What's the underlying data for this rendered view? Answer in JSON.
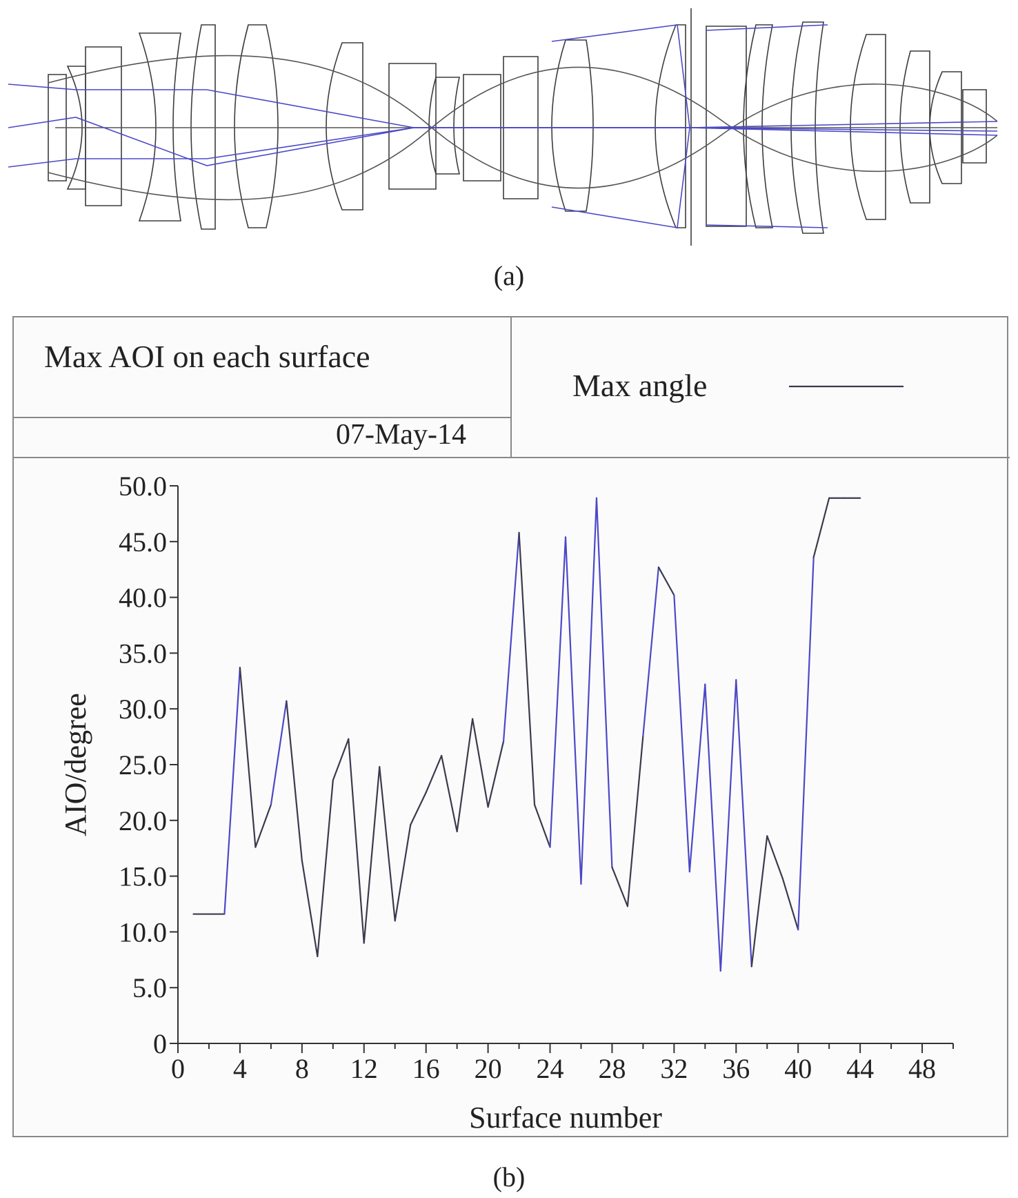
{
  "figure": {
    "panel_a_label": "(a)",
    "panel_b_label": "(b)"
  },
  "chart_data": {
    "type": "line",
    "title": "Max AOI on each surface",
    "date": "07-May-14",
    "legend": {
      "label": "Max angle",
      "placement": "top-right"
    },
    "xlabel": "Surface number",
    "ylabel": "AIO/degree",
    "xlim": [
      0,
      50
    ],
    "ylim": [
      0,
      50
    ],
    "xticks": [
      0,
      4,
      8,
      12,
      16,
      20,
      24,
      28,
      32,
      36,
      40,
      44,
      48
    ],
    "yticks": [
      "0",
      "5.0",
      "10.0",
      "15.0",
      "20.0",
      "25.0",
      "30.0",
      "35.0",
      "40.0",
      "45.0",
      "50.0"
    ],
    "grid": false,
    "colors": {
      "line": "#3a3a4e",
      "accent": "#4b48c8"
    },
    "series": [
      {
        "x": [
          1,
          2,
          3,
          4,
          5,
          6,
          7,
          8,
          9,
          10,
          11,
          12,
          13,
          14,
          15,
          16,
          17,
          18,
          19,
          20,
          21,
          22,
          23,
          24,
          25,
          26,
          27,
          28,
          29,
          30,
          31,
          32,
          33,
          34,
          35,
          36,
          37,
          38,
          39,
          40,
          41,
          42,
          43,
          44
        ],
        "values": [
          11.6,
          11.6,
          11.6,
          33.7,
          17.6,
          21.4,
          30.7,
          16.4,
          7.8,
          23.6,
          27.3,
          9.0,
          24.8,
          11.0,
          19.6,
          22.5,
          25.8,
          19.0,
          29.1,
          21.2,
          27.1,
          45.8,
          21.4,
          17.6,
          45.4,
          14.3,
          48.9,
          15.8,
          12.3,
          27.6,
          42.7,
          40.2,
          15.4,
          32.2,
          6.5,
          32.6,
          6.9,
          18.6,
          14.8,
          10.2,
          43.6,
          48.9,
          48.9,
          48.9
        ]
      }
    ]
  }
}
